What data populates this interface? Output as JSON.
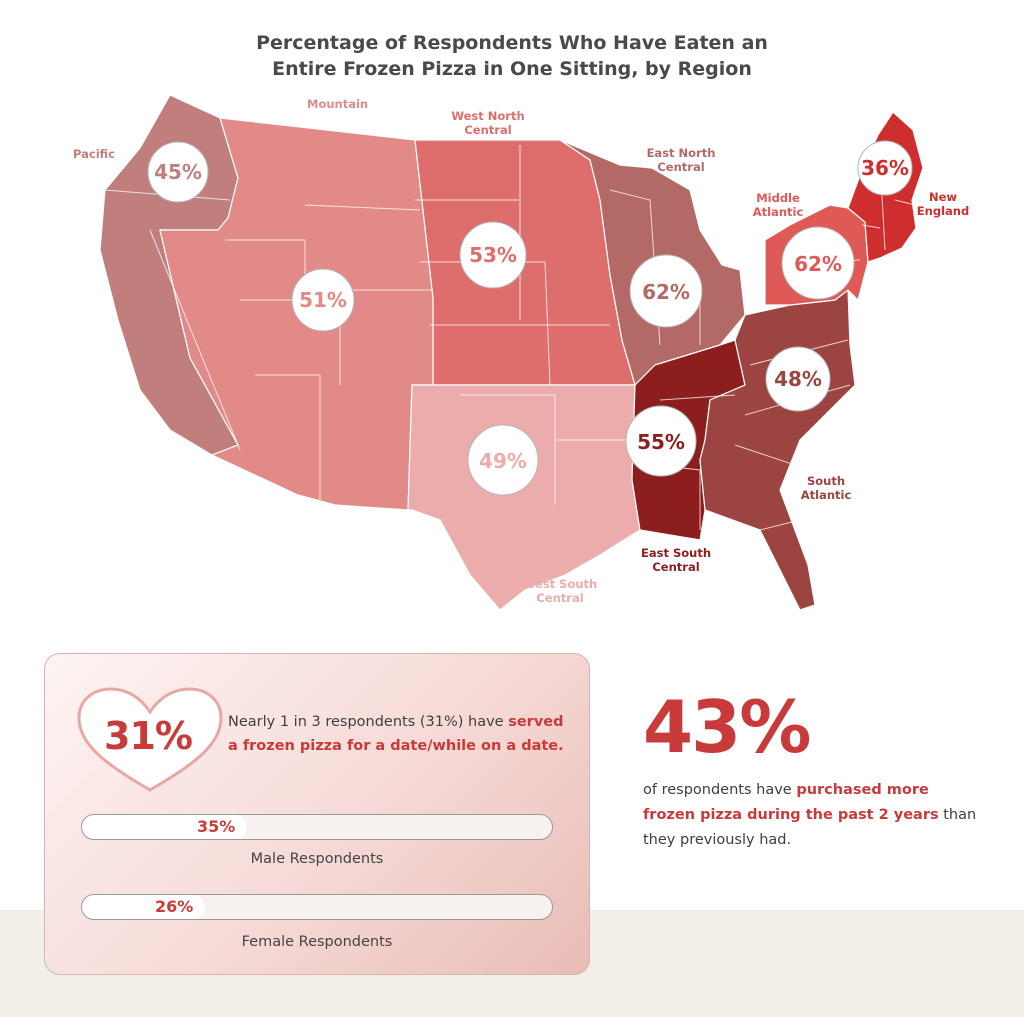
{
  "title_line1": "Percentage of Respondents Who Have Eaten an",
  "title_line2": "Entire Frozen Pizza in One Sitting, by Region",
  "regions": {
    "pacific": {
      "name": "Pacific",
      "value": "45%",
      "color": "#c07f7d"
    },
    "mountain": {
      "name": "Mountain",
      "value": "51%",
      "color": "#e28a88"
    },
    "west_north_central": {
      "name_line1": "West North",
      "name_line2": "Central",
      "value": "53%",
      "color": "#dd6e6c"
    },
    "east_north_central": {
      "name_line1": "East North",
      "name_line2": "Central",
      "value": "62%",
      "color": "#b36a67"
    },
    "middle_atlantic": {
      "name_line1": "Middle",
      "name_line2": "Atlantic",
      "value": "62%",
      "color": "#df5a56"
    },
    "new_england": {
      "name_line1": "New",
      "name_line2": "England",
      "value": "36%",
      "color": "#cf2e2e"
    },
    "south_atlantic": {
      "name_line1": "South",
      "name_line2": "Atlantic",
      "value": "48%",
      "color": "#9c4442"
    },
    "east_south_central": {
      "name_line1": "East South",
      "name_line2": "Central",
      "value": "55%",
      "color": "#8c1e1e"
    },
    "west_south_central": {
      "name_line1": "West South",
      "name_line2": "Central",
      "value": "49%",
      "color": "#ebacab"
    }
  },
  "date_stat": {
    "value": "31%",
    "text_plain": "Nearly 1 in 3 respondents (31%) have ",
    "text_bold": "served a frozen pizza for a date/while on a date."
  },
  "gender": {
    "male": {
      "value": "35%",
      "fraction": 0.35,
      "label": "Male Respondents"
    },
    "female": {
      "value": "26%",
      "fraction": 0.26,
      "label": "Female Respondents"
    }
  },
  "purchase_stat": {
    "value": "43%",
    "text_plain1": "of respondents have ",
    "text_bold": "purchased more frozen pizza during the past 2 years",
    "text_plain2": " than they previously had."
  },
  "colors": {
    "accent": "#c93a3a"
  }
}
